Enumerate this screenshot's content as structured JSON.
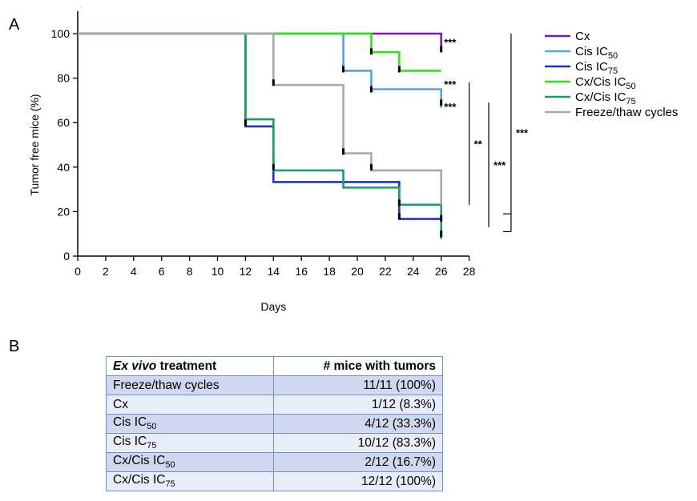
{
  "panels": {
    "a": "A",
    "b": "B"
  },
  "chart_data": {
    "type": "line",
    "step": true,
    "xlabel": "Days",
    "ylabel": "Tumor free mice  (%)",
    "xlim": [
      0,
      28
    ],
    "ylim": [
      0,
      100
    ],
    "xticks": [
      0,
      2,
      4,
      6,
      8,
      10,
      12,
      14,
      16,
      18,
      20,
      22,
      24,
      26,
      28
    ],
    "yticks": [
      0,
      20,
      40,
      60,
      80,
      100
    ],
    "grid": false,
    "legend_position": "top-right",
    "series": [
      {
        "key": "cx",
        "name": "Cx",
        "sub": "",
        "color": "#7a1fa2",
        "x": [
          0,
          21,
          26
        ],
        "y": [
          100,
          100,
          91.7
        ]
      },
      {
        "key": "cis50",
        "name": "Cis IC",
        "sub": "50",
        "color": "#5aa0e6",
        "x": [
          0,
          19,
          21,
          26
        ],
        "y": [
          100,
          83.3,
          75,
          66.7
        ]
      },
      {
        "key": "cis75",
        "name": "Cis IC",
        "sub": "75",
        "color": "#1f2fd1",
        "x": [
          0,
          12,
          14,
          23,
          26
        ],
        "y": [
          100,
          58.3,
          33.3,
          16.7,
          16.7
        ]
      },
      {
        "key": "cxcis50",
        "name": "Cx/Cis IC",
        "sub": "50",
        "color": "#32e01e",
        "x": [
          0,
          21,
          23,
          26
        ],
        "y": [
          100,
          91.7,
          83.3,
          83.3
        ]
      },
      {
        "key": "cxcis75",
        "name": "Cx/Cis IC",
        "sub": "75",
        "color": "#1f9a6a",
        "x": [
          0,
          12,
          14,
          19,
          23,
          26
        ],
        "y": [
          100,
          61.5,
          38.5,
          30.8,
          23.1,
          7.7
        ]
      },
      {
        "key": "freeze",
        "name": "Freeze/thaw cycles",
        "sub": "",
        "color": "#a9a9a9",
        "x": [
          0,
          14,
          19,
          21,
          26
        ],
        "y": [
          100,
          76.9,
          46.2,
          38.5,
          23.1
        ]
      }
    ],
    "censor_marks": [
      {
        "x": 21,
        "y": 92,
        "color": "#000000"
      },
      {
        "x": 23,
        "y": 84,
        "color": "#000000"
      },
      {
        "x": 19,
        "y": 84,
        "color": "#000000"
      },
      {
        "x": 21,
        "y": 75,
        "color": "#000000"
      },
      {
        "x": 26,
        "y": 93,
        "color": "#000000"
      },
      {
        "x": 26,
        "y": 69,
        "color": "#000000"
      },
      {
        "x": 14,
        "y": 78,
        "color": "#000000"
      },
      {
        "x": 19,
        "y": 47,
        "color": "#000000"
      },
      {
        "x": 21,
        "y": 40,
        "color": "#000000"
      },
      {
        "x": 12,
        "y": 60,
        "color": "#000000"
      },
      {
        "x": 14,
        "y": 40,
        "color": "#000000"
      },
      {
        "x": 23,
        "y": 24,
        "color": "#000000"
      },
      {
        "x": 23,
        "y": 18,
        "color": "#000000"
      },
      {
        "x": 26,
        "y": 17,
        "color": "#000000"
      },
      {
        "x": 26,
        "y": 10,
        "color": "#000000"
      }
    ],
    "annotations": [
      {
        "text": "***",
        "x": 26.2,
        "y": 97
      },
      {
        "text": "***",
        "x": 26.2,
        "y": 78
      },
      {
        "text": "***",
        "x": 26.2,
        "y": 68
      }
    ],
    "brackets": [
      {
        "text": "**",
        "x": 28.0,
        "y_top": 78,
        "y_bottom": 23
      },
      {
        "text": "***",
        "x": 29.4,
        "y_top": 69,
        "y_bottom": 13
      },
      {
        "text": "***",
        "x": 31.0,
        "y_top": 100,
        "y_bottom": 11,
        "hooks": [
          19,
          11
        ]
      }
    ]
  },
  "table": {
    "headers": [
      "Ex vivo treatment",
      "# mice with tumors"
    ],
    "header_italic": "Ex vivo",
    "header_rest": " treatment",
    "rows": [
      {
        "name": "Freeze/thaw cycles",
        "sub": "",
        "value": "11/11 (100%)"
      },
      {
        "name": "Cx",
        "sub": "",
        "value": "1/12 (8.3%)"
      },
      {
        "name": "Cis IC",
        "sub": "50",
        "value": "4/12 (33.3%)"
      },
      {
        "name": "Cis IC",
        "sub": "75",
        "value": "10/12 (83.3%)"
      },
      {
        "name": "Cx/Cis IC",
        "sub": "50",
        "value": "2/12 (16.7%)"
      },
      {
        "name": "Cx/Cis IC",
        "sub": "75",
        "value": "12/12 (100%)"
      }
    ]
  }
}
